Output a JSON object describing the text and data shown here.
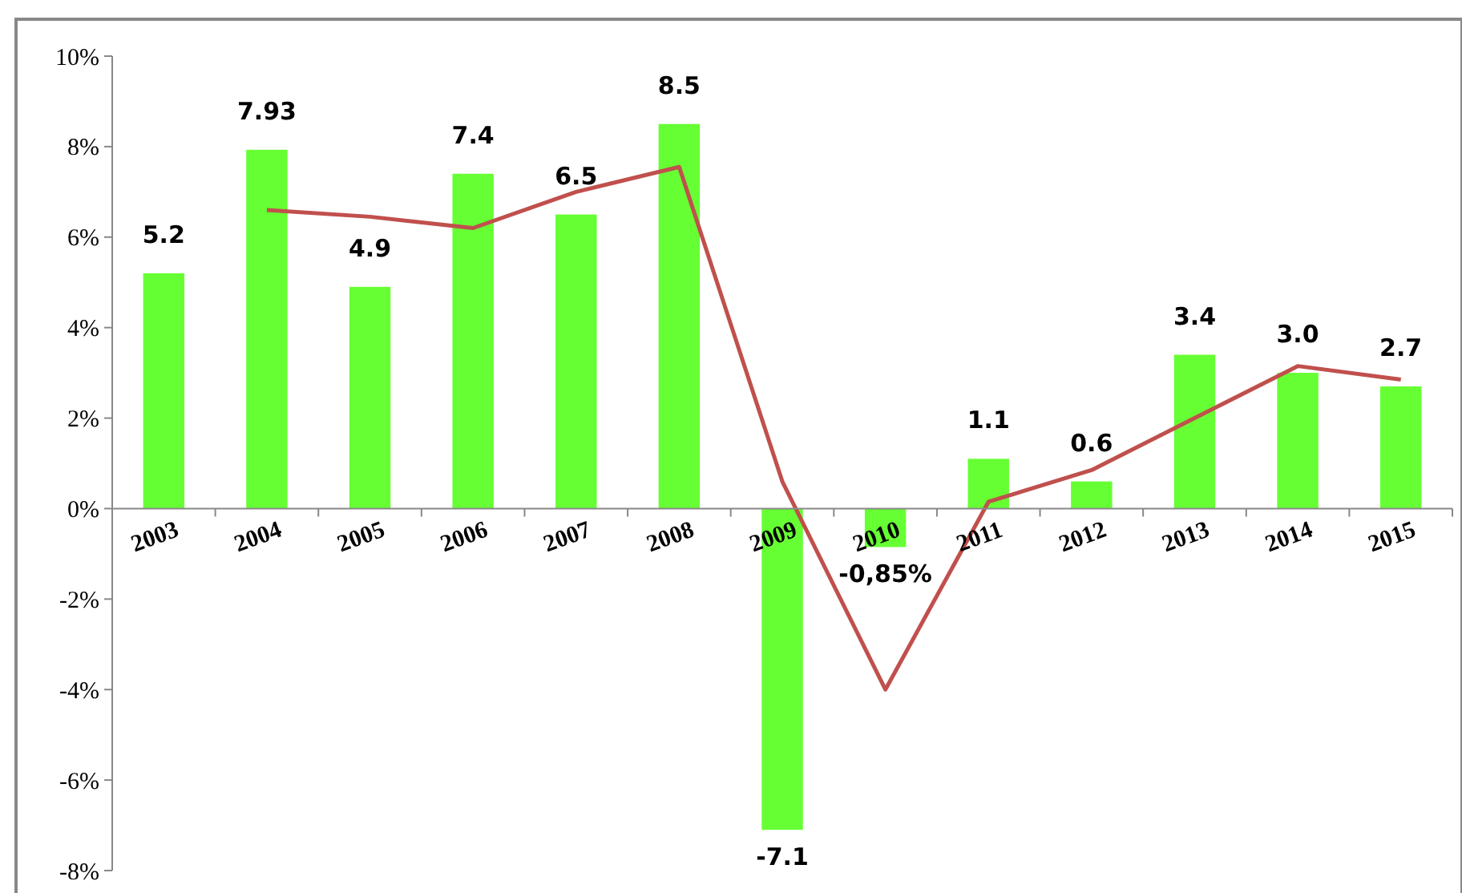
{
  "chart_data": {
    "type": "bar",
    "categories": [
      "2003",
      "2004",
      "2005",
      "2006",
      "2007",
      "2008",
      "2009",
      "2010",
      "2011",
      "2012",
      "2013",
      "2014",
      "2015"
    ],
    "ylim": [
      -8,
      10
    ],
    "yticks": [
      {
        "value": -8,
        "label": "-8%"
      },
      {
        "value": -6,
        "label": "-6%"
      },
      {
        "value": -4,
        "label": "-4%"
      },
      {
        "value": -2,
        "label": "-2%"
      },
      {
        "value": 0,
        "label": "0%"
      },
      {
        "value": 2,
        "label": "2%"
      },
      {
        "value": 4,
        "label": "4%"
      },
      {
        "value": 6,
        "label": "6%"
      },
      {
        "value": 8,
        "label": "8%"
      },
      {
        "value": 10,
        "label": "10%"
      }
    ],
    "series": [
      {
        "color": "#66ff33",
        "values": [
          5.2,
          7.93,
          4.9,
          7.4,
          6.5,
          8.5,
          -7.1,
          -0.85,
          1.1,
          0.6,
          3.4,
          3.0,
          2.7
        ],
        "value_labels": [
          "5.2",
          "7.93",
          "4.9",
          "7.4",
          "6.5",
          "8.5",
          "-7.1",
          "-0,85%",
          "1.1",
          "0.6",
          "3.4",
          "3.0",
          "2.7"
        ]
      },
      {
        "type": "line",
        "color": "#c0504d",
        "values": [
          null,
          6.6,
          6.45,
          6.2,
          7.0,
          7.55,
          0.6,
          -4.0,
          0.15,
          0.85,
          2.0,
          3.15,
          2.85
        ]
      }
    ]
  }
}
